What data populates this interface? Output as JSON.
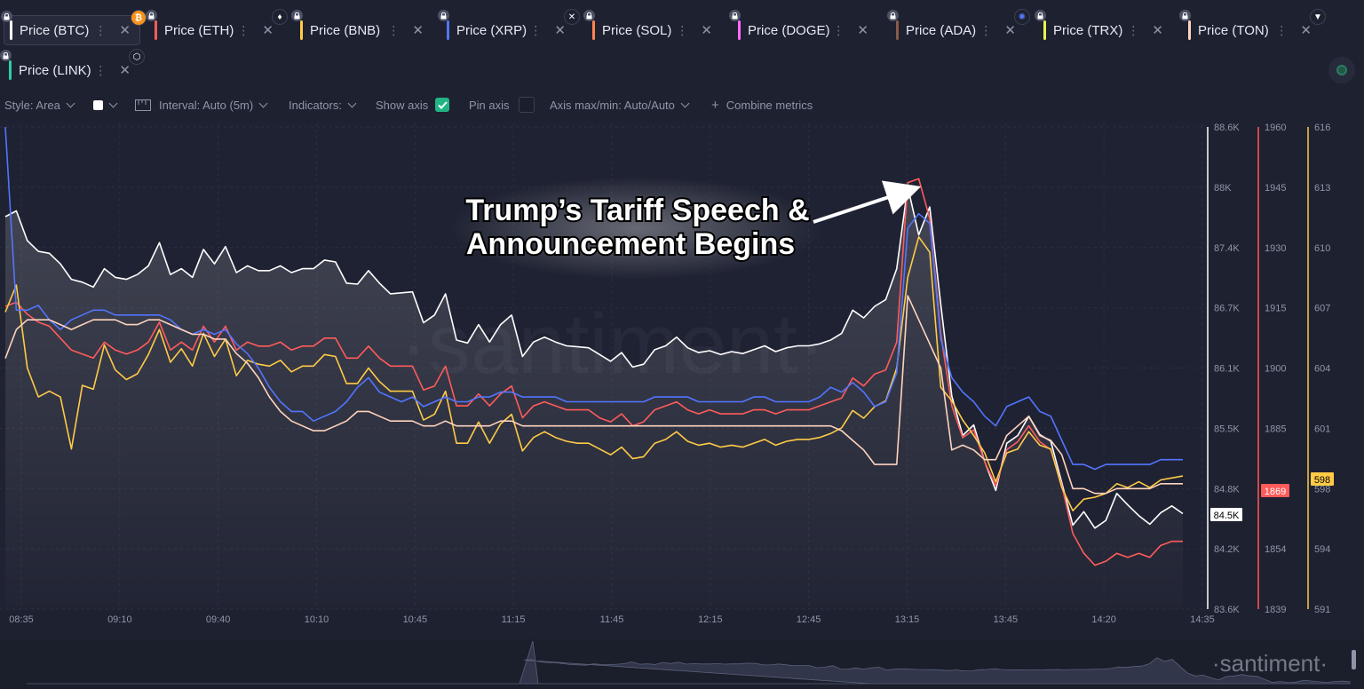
{
  "metrics": [
    {
      "label": "Price (BTC)",
      "color": "#ffffff",
      "coin_icon": "bitcoin-icon",
      "coin_color": "#f7931a",
      "active": true
    },
    {
      "label": "Price (ETH)",
      "color": "#ff5b5b",
      "coin_icon": "ethereum-icon",
      "coin_color": "#ffffff"
    },
    {
      "label": "Price (BNB)",
      "color": "#ffcb47",
      "coin_icon": null
    },
    {
      "label": "Price (XRP)",
      "color": "#5275ff",
      "coin_icon": "xrp-icon",
      "coin_color": "#ffffff"
    },
    {
      "label": "Price (SOL)",
      "color": "#ff8450",
      "coin_icon": null
    },
    {
      "label": "Price (DOGE)",
      "color": "#ff6bff",
      "coin_icon": null
    },
    {
      "label": "Price (ADA)",
      "color": "#8a5a4a",
      "coin_icon": "cardano-icon",
      "coin_color": "#5a7bff"
    },
    {
      "label": "Price (TRX)",
      "color": "#e6f34f",
      "coin_icon": null
    },
    {
      "label": "Price (TON)",
      "color": "#ffd4be",
      "coin_icon": "ton-icon",
      "coin_color": "#ffffff"
    },
    {
      "label": "Price (LINK)",
      "color": "#2ecfa5",
      "coin_icon": "chainlink-icon",
      "coin_color": "#ffffff"
    }
  ],
  "toolbar": {
    "style": "Style: Area",
    "interval": "Interval: Auto (5m)",
    "indicators": "Indicators:",
    "show_axis": "Show axis",
    "pin_axis": "Pin axis",
    "axis_maxmin": "Axis max/min: Auto/Auto",
    "combine": "Combine metrics",
    "show_axis_checked": true,
    "pin_axis_checked": false
  },
  "watermark": "·santiment·",
  "annotation": {
    "line1": "Trump’s Tariff Speech &",
    "line2": "Announcement Begins"
  },
  "chart_data": {
    "type": "line",
    "x_ticks": [
      "08:35",
      "09:10",
      "09:40",
      "10:10",
      "10:45",
      "11:15",
      "11:45",
      "12:15",
      "12:45",
      "13:15",
      "13:45",
      "14:20",
      "14:35"
    ],
    "axes": [
      {
        "name": "BTC",
        "color": "#ffffff",
        "ticks": [
          "88.6K",
          "88K",
          "87.4K",
          "86.7K",
          "86.1K",
          "85.5K",
          "84.8K",
          "84.2K",
          "83.6K"
        ],
        "current": "84.5K"
      },
      {
        "name": "ETH",
        "color": "#ff5b5b",
        "ticks": [
          "1960",
          "1945",
          "1930",
          "1915",
          "1900",
          "1885",
          "1869",
          "1854",
          "1839"
        ],
        "current": "1869"
      },
      {
        "name": "BNB",
        "color": "#ffcb47",
        "ticks": [
          "616",
          "613",
          "610",
          "607",
          "604",
          "601",
          "598",
          "594",
          "591"
        ],
        "current": "598"
      }
    ],
    "series": [
      {
        "name": "Price (BTC)",
        "color": "#ffffff",
        "area": true,
        "values": [
          87.67,
          87.73,
          87.42,
          87.31,
          87.29,
          87.18,
          87.02,
          86.99,
          86.94,
          87.13,
          87.04,
          87.02,
          87.07,
          87.16,
          87.4,
          87.07,
          87.13,
          87.04,
          87.33,
          87.18,
          87.36,
          87.09,
          87.16,
          87.11,
          87.11,
          87.16,
          87.09,
          87.13,
          87.13,
          87.22,
          87.2,
          86.98,
          86.97,
          87.11,
          86.98,
          86.87,
          86.88,
          86.89,
          86.57,
          86.65,
          86.87,
          86.39,
          86.36,
          86.55,
          86.37,
          86.55,
          86.65,
          86.22,
          86.37,
          86.42,
          86.37,
          86.33,
          86.32,
          86.31,
          86.24,
          86.17,
          86.26,
          86.11,
          86.14,
          86.29,
          86.33,
          86.42,
          86.31,
          86.26,
          86.28,
          86.24,
          86.27,
          86.25,
          86.29,
          86.33,
          86.27,
          86.31,
          86.33,
          86.33,
          86.35,
          86.39,
          86.46,
          86.7,
          86.62,
          86.74,
          86.81,
          87.13,
          87.98,
          87.48,
          87.77,
          86.76,
          85.81,
          85.4,
          85.51,
          85.13,
          84.83,
          85.32,
          85.4,
          85.6,
          85.41,
          85.34,
          84.91,
          84.47,
          84.61,
          84.44,
          84.52,
          84.8,
          84.68,
          84.57,
          84.48,
          84.6,
          84.67,
          84.59
        ]
      },
      {
        "name": "Price (ETH)",
        "color": "#ff5b5b",
        "values": [
          1915,
          1916,
          1913,
          1911,
          1910,
          1907,
          1904,
          1903,
          1902,
          1906,
          1904,
          1903,
          1904,
          1906,
          1911,
          1904,
          1906,
          1904,
          1910,
          1906,
          1910,
          1904,
          1906,
          1905,
          1905,
          1906,
          1904,
          1905,
          1905,
          1907,
          1907,
          1902,
          1902,
          1905,
          1902,
          1900,
          1900,
          1900,
          1894,
          1895,
          1900,
          1890,
          1890,
          1893,
          1890,
          1893,
          1895,
          1887,
          1890,
          1891,
          1890,
          1889,
          1889,
          1889,
          1887,
          1886,
          1888,
          1885,
          1886,
          1889,
          1890,
          1891,
          1889,
          1888,
          1889,
          1888,
          1888,
          1888,
          1889,
          1889,
          1888,
          1889,
          1889,
          1889,
          1890,
          1891,
          1892,
          1897,
          1895,
          1898,
          1899,
          1906,
          1946,
          1947,
          1937,
          1908,
          1890,
          1882,
          1884,
          1876,
          1870,
          1879,
          1881,
          1885,
          1881,
          1879,
          1870,
          1858,
          1853,
          1850,
          1851,
          1853,
          1852,
          1853,
          1852,
          1855,
          1856,
          1856
        ]
      },
      {
        "name": "Price (BNB)",
        "color": "#ffcb47",
        "values": [
          606.4,
          607.8,
          603.5,
          602.0,
          602.3,
          602.0,
          599.3,
          602.6,
          602.4,
          604.7,
          603.4,
          602.9,
          603.2,
          604.2,
          605.5,
          603.8,
          604.5,
          603.6,
          605.3,
          604.1,
          605.0,
          603.1,
          603.9,
          603.7,
          603.6,
          603.9,
          603.3,
          603.6,
          603.6,
          604.2,
          604.1,
          602.7,
          602.7,
          603.5,
          602.8,
          602.3,
          602.3,
          602.3,
          600.8,
          601.1,
          602.3,
          599.6,
          599.6,
          600.7,
          599.6,
          600.6,
          601.1,
          599.2,
          599.9,
          600.2,
          599.9,
          599.7,
          599.6,
          599.6,
          599.3,
          599.0,
          599.4,
          598.8,
          598.9,
          599.6,
          599.8,
          600.2,
          599.7,
          599.5,
          599.6,
          599.4,
          599.5,
          599.4,
          599.6,
          599.8,
          599.5,
          599.7,
          599.8,
          599.8,
          599.9,
          600.1,
          600.4,
          601.3,
          600.9,
          601.5,
          601.8,
          603.5,
          608.2,
          610.3,
          609.5,
          602.5,
          601.8,
          600.8,
          600.0,
          599.1,
          597.6,
          599.1,
          599.3,
          600.2,
          599.5,
          599.3,
          597.3,
          596.1,
          596.7,
          596.8,
          597.0,
          597.5,
          597.3,
          597.6,
          597.3,
          597.7,
          597.8,
          597.9
        ]
      },
      {
        "name": "Price (XRP)",
        "color": "#5275ff",
        "values": [
          1,
          0.62,
          0.62,
          0.63,
          0.6,
          0.58,
          0.6,
          0.61,
          0.62,
          0.62,
          0.61,
          0.61,
          0.61,
          0.61,
          0.61,
          0.6,
          0.58,
          0.57,
          0.58,
          0.57,
          0.58,
          0.55,
          0.53,
          0.5,
          0.46,
          0.43,
          0.41,
          0.41,
          0.39,
          0.4,
          0.41,
          0.43,
          0.46,
          0.48,
          0.45,
          0.44,
          0.43,
          0.44,
          0.42,
          0.43,
          0.44,
          0.43,
          0.43,
          0.44,
          0.44,
          0.45,
          0.45,
          0.44,
          0.44,
          0.44,
          0.44,
          0.43,
          0.43,
          0.43,
          0.43,
          0.43,
          0.43,
          0.43,
          0.43,
          0.44,
          0.44,
          0.44,
          0.44,
          0.43,
          0.43,
          0.43,
          0.43,
          0.43,
          0.44,
          0.44,
          0.43,
          0.43,
          0.43,
          0.43,
          0.44,
          0.46,
          0.45,
          0.47,
          0.45,
          0.42,
          0.43,
          0.49,
          0.79,
          0.82,
          0.8,
          0.56,
          0.48,
          0.45,
          0.43,
          0.4,
          0.38,
          0.42,
          0.43,
          0.44,
          0.41,
          0.4,
          0.35,
          0.3,
          0.3,
          0.29,
          0.3,
          0.3,
          0.3,
          0.3,
          0.3,
          0.31,
          0.31,
          0.31
        ]
      },
      {
        "name": "Price (TON)",
        "color": "#ffd4be",
        "values": [
          0.52,
          0.58,
          0.6,
          0.6,
          0.6,
          0.59,
          0.58,
          0.59,
          0.6,
          0.6,
          0.6,
          0.59,
          0.59,
          0.6,
          0.6,
          0.59,
          0.58,
          0.57,
          0.57,
          0.56,
          0.56,
          0.53,
          0.51,
          0.48,
          0.44,
          0.41,
          0.39,
          0.38,
          0.37,
          0.37,
          0.38,
          0.39,
          0.41,
          0.41,
          0.4,
          0.39,
          0.39,
          0.39,
          0.38,
          0.38,
          0.39,
          0.38,
          0.38,
          0.38,
          0.38,
          0.39,
          0.39,
          0.38,
          0.38,
          0.38,
          0.38,
          0.38,
          0.38,
          0.38,
          0.38,
          0.38,
          0.38,
          0.38,
          0.38,
          0.38,
          0.38,
          0.38,
          0.38,
          0.38,
          0.38,
          0.38,
          0.38,
          0.38,
          0.38,
          0.38,
          0.38,
          0.38,
          0.38,
          0.38,
          0.38,
          0.38,
          0.37,
          0.35,
          0.33,
          0.3,
          0.3,
          0.3,
          0.65,
          0.6,
          0.55,
          0.5,
          0.33,
          0.34,
          0.33,
          0.31,
          0.31,
          0.36,
          0.38,
          0.4,
          0.36,
          0.35,
          0.32,
          0.25,
          0.25,
          0.24,
          0.24,
          0.25,
          0.25,
          0.25,
          0.25,
          0.26,
          0.26,
          0.26
        ]
      }
    ]
  }
}
